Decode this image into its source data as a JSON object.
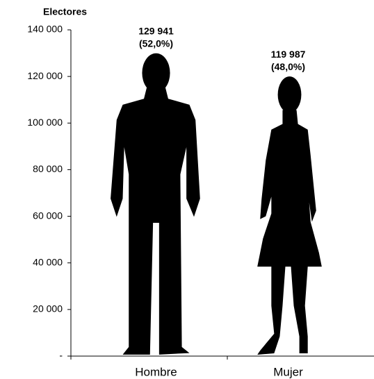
{
  "chart_data": {
    "type": "pictogram",
    "y_axis_label": "Electores",
    "categories": [
      "Hombre",
      "Mujer"
    ],
    "values": [
      129941,
      119987
    ],
    "value_labels": [
      "129 941",
      "119 987"
    ],
    "percent_labels": [
      "(52,0%)",
      "(48,0%)"
    ],
    "color": "#000000",
    "ylim": [
      0,
      140000
    ],
    "yticks": [
      {
        "value": 0,
        "label": "-"
      },
      {
        "value": 20000,
        "label": "20 000"
      },
      {
        "value": 40000,
        "label": "40 000"
      },
      {
        "value": 60000,
        "label": "60 000"
      },
      {
        "value": 80000,
        "label": "80 000"
      },
      {
        "value": 100000,
        "label": "100 000"
      },
      {
        "value": 120000,
        "label": "120 000"
      },
      {
        "value": 140000,
        "label": "140 000"
      }
    ]
  }
}
